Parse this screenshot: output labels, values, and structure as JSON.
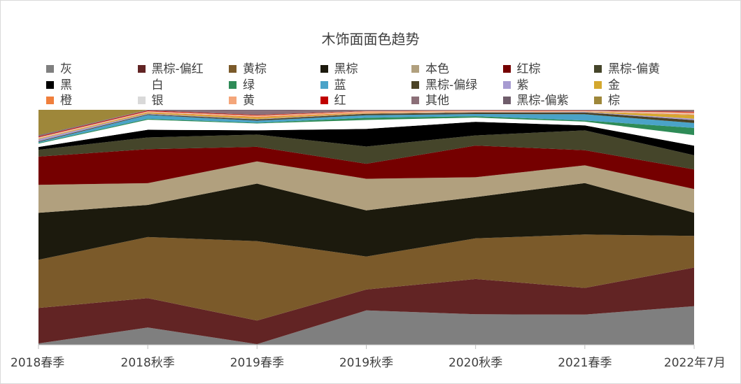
{
  "chart_data": {
    "type": "area",
    "title": "木饰面面色趋势",
    "xlabel": "",
    "ylabel": "",
    "stacked": true,
    "normalized_percent": true,
    "ylim": [
      0,
      100
    ],
    "legend_position": "top",
    "categories": [
      "2018春季",
      "2018秋季",
      "2019春季",
      "2019秋季",
      "2020秋季",
      "2021春季",
      "2022年7月"
    ],
    "series": [
      {
        "name": "灰",
        "color": "#7f7f7f",
        "values": [
          0.6,
          7.4,
          0.3,
          14.6,
          13.0,
          12.8,
          16.4
        ]
      },
      {
        "name": "黑棕-偏红",
        "color": "#622424",
        "values": [
          15.1,
          12.5,
          10.0,
          8.9,
          15.0,
          11.3,
          16.4
        ]
      },
      {
        "name": "黄棕",
        "color": "#7b5a2a",
        "values": [
          20.5,
          26.1,
          33.7,
          14.0,
          17.3,
          22.6,
          13.4
        ]
      },
      {
        "name": "黑棕",
        "color": "#1c1a0d",
        "values": [
          20.0,
          13.7,
          24.4,
          19.6,
          17.6,
          21.8,
          9.8
        ]
      },
      {
        "name": "本色",
        "color": "#b1a07e",
        "values": [
          11.9,
          9.3,
          9.4,
          13.4,
          8.4,
          7.5,
          10.1
        ]
      },
      {
        "name": "红棕",
        "color": "#750000",
        "values": [
          12.0,
          14.5,
          6.2,
          6.4,
          13.5,
          6.4,
          8.3
        ]
      },
      {
        "name": "黑棕-偏黄",
        "color": "#45452a",
        "values": [
          2.9,
          5.0,
          5.2,
          7.3,
          4.3,
          8.4,
          6.0
        ]
      },
      {
        "name": "黑",
        "color": "#000000",
        "values": [
          1.2,
          3.3,
          1.8,
          7.5,
          5.8,
          2.1,
          4.1
        ]
      },
      {
        "name": "白",
        "color": "#ffffff",
        "values": [
          1.4,
          4.3,
          2.9,
          3.8,
          1.8,
          1.6,
          4.5
        ]
      },
      {
        "name": "绿",
        "color": "#2e8b57",
        "values": [
          0.3,
          0.4,
          0.3,
          0.9,
          0.6,
          0.5,
          3.0
        ]
      },
      {
        "name": "蓝",
        "color": "#4aa3c8",
        "values": [
          0.4,
          1.6,
          0.9,
          1.1,
          0.9,
          2.6,
          2.1
        ]
      },
      {
        "name": "黑棕-偏绿",
        "color": "#4a4225",
        "values": [
          0.3,
          0.3,
          0.5,
          0.6,
          0.6,
          0.8,
          1.2
        ]
      },
      {
        "name": "紫",
        "color": "#a79bd1",
        "values": [
          0.9,
          0.3,
          0.2,
          0.1,
          0.2,
          0.2,
          0.6
        ]
      },
      {
        "name": "金",
        "color": "#d4a82e",
        "values": [
          0.2,
          0.4,
          0.6,
          0.2,
          0.1,
          0.1,
          1.5
        ]
      },
      {
        "name": "橙",
        "color": "#f07f3c",
        "values": [
          0.2,
          0.2,
          0.4,
          0.2,
          0.1,
          0.1,
          0.3
        ]
      },
      {
        "name": "银",
        "color": "#d9d9d9",
        "values": [
          0.2,
          0.2,
          0.1,
          0.1,
          0.1,
          0.1,
          0.3
        ]
      },
      {
        "name": "黄",
        "color": "#f4a67a",
        "values": [
          0.2,
          0.2,
          0.4,
          0.5,
          0.3,
          0.2,
          0.6
        ]
      },
      {
        "name": "红",
        "color": "#c00000",
        "values": [
          0.3,
          0.3,
          0.2,
          0.1,
          0.1,
          0.1,
          0.3
        ]
      },
      {
        "name": "其他",
        "color": "#8c6f78",
        "values": [
          0.3,
          0.2,
          1.8,
          0.4,
          0.2,
          0.2,
          0.4
        ]
      },
      {
        "name": "黑棕-偏紫",
        "color": "#6f5d6b",
        "values": [
          0.3,
          0.1,
          0.4,
          0.1,
          0.1,
          0.1,
          0.3
        ]
      },
      {
        "name": "棕",
        "color": "#9e873a",
        "values": [
          10.8,
          0.0,
          0.0,
          0.0,
          0.0,
          0.0,
          0.1
        ]
      }
    ]
  }
}
